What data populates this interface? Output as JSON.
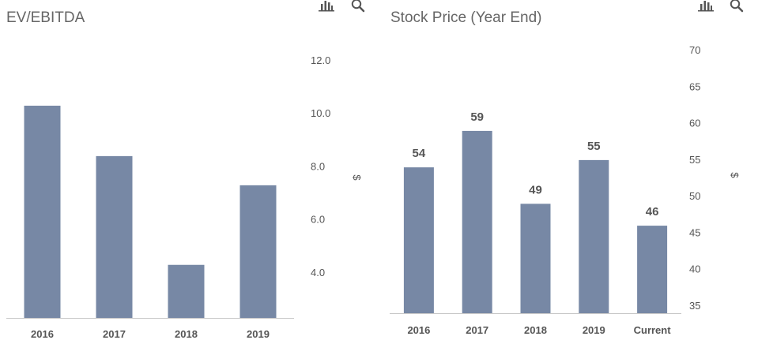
{
  "icons": [
    "bar-chart-icon",
    "search-icon"
  ],
  "chart_data": [
    {
      "type": "bar",
      "title": "EV/EBITDA",
      "categories": [
        "2016",
        "2017",
        "2018",
        "2019"
      ],
      "values": [
        10.3,
        8.4,
        4.3,
        7.3
      ],
      "yticks": [
        "4.0",
        "6.0",
        "8.0",
        "10.0",
        "12.0"
      ],
      "ylabel": "$",
      "ylim": [
        2.3,
        12.5
      ],
      "data_labels": false,
      "color": "#7788a5",
      "grid": false,
      "axis_position": "right"
    },
    {
      "type": "bar",
      "title": "Stock Price (Year End)",
      "categories": [
        "2016",
        "2017",
        "2018",
        "2019",
        "Current"
      ],
      "values": [
        54,
        59,
        49,
        55,
        46
      ],
      "labels": [
        "54",
        "59",
        "49",
        "55",
        "46"
      ],
      "yticks": [
        "35",
        "40",
        "45",
        "50",
        "55",
        "60",
        "65",
        "70"
      ],
      "ylabel": "$",
      "ylim": [
        34,
        71
      ],
      "data_labels": true,
      "color": "#7788a5",
      "grid": false,
      "axis_position": "right"
    }
  ]
}
